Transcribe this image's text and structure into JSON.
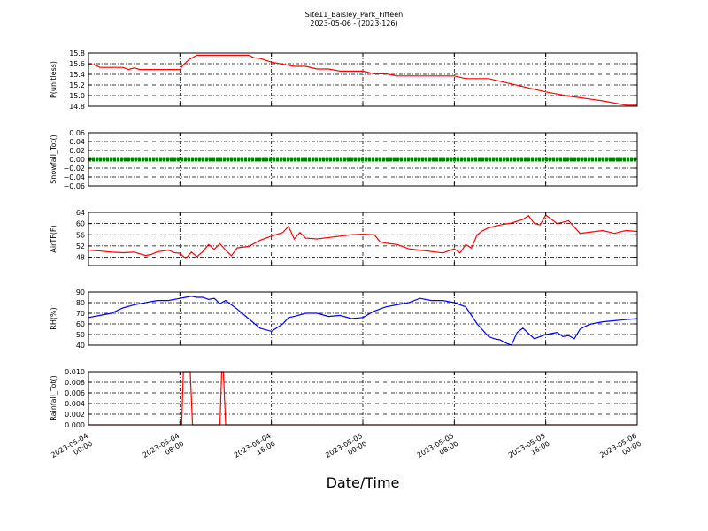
{
  "title_line1": "Site11_Baisley_Park_Fifteen",
  "title_line2": "2023-05-06 - (2023-126)",
  "xlabel": "Date/Time",
  "chart_data": {
    "type": "line",
    "x_range_hours": [
      0,
      48
    ],
    "x_ticks": [
      {
        "hours": 0,
        "line1": "2023-05-04",
        "line2": "00:00"
      },
      {
        "hours": 8,
        "line1": "2023-05-04",
        "line2": "08:00"
      },
      {
        "hours": 16,
        "line1": "2023-05-04",
        "line2": "16:00"
      },
      {
        "hours": 24,
        "line1": "2023-05-05",
        "line2": "00:00"
      },
      {
        "hours": 32,
        "line1": "2023-05-05",
        "line2": "08:00"
      },
      {
        "hours": 40,
        "line1": "2023-05-05",
        "line2": "16:00"
      },
      {
        "hours": 48,
        "line1": "2023-05-06",
        "line2": "00:00"
      }
    ],
    "panels": [
      {
        "ylabel": "P(unitless)",
        "color": "#ff0000",
        "ylim": [
          14.8,
          15.8
        ],
        "yticks": [
          "15.8",
          "15.6",
          "15.4",
          "15.2",
          "15.0",
          "14.8"
        ],
        "ytick_values": [
          15.8,
          15.6,
          15.4,
          15.2,
          15.0,
          14.8
        ],
        "x": [
          0,
          0.5,
          1,
          2,
          3,
          3.5,
          4,
          4.5,
          5,
          6,
          7,
          8,
          8.3,
          8.8,
          9.5,
          10,
          11,
          12,
          13,
          14,
          14.5,
          15,
          16,
          17,
          18,
          19,
          20,
          21,
          22,
          23,
          24,
          25,
          26,
          27,
          28,
          29,
          30,
          31,
          32,
          33,
          34,
          35,
          36,
          37,
          38,
          39,
          40,
          41,
          42,
          43,
          44,
          45,
          46,
          47,
          48
        ],
        "values": [
          15.58,
          15.58,
          15.53,
          15.53,
          15.53,
          15.49,
          15.52,
          15.49,
          15.49,
          15.49,
          15.49,
          15.49,
          15.58,
          15.68,
          15.76,
          15.76,
          15.76,
          15.76,
          15.76,
          15.76,
          15.71,
          15.7,
          15.63,
          15.59,
          15.55,
          15.55,
          15.5,
          15.5,
          15.46,
          15.46,
          15.46,
          15.41,
          15.41,
          15.37,
          15.37,
          15.37,
          15.37,
          15.37,
          15.37,
          15.32,
          15.32,
          15.32,
          15.27,
          15.22,
          15.17,
          15.12,
          15.07,
          15.03,
          14.99,
          14.96,
          14.93,
          14.9,
          14.86,
          14.82,
          14.82
        ]
      },
      {
        "ylabel": "Snowfall_Tot()",
        "color": "#008000",
        "ylim": [
          -0.06,
          0.06
        ],
        "yticks": [
          "0.06",
          "0.04",
          "0.02",
          "0.00",
          "−0.02",
          "−0.04",
          "−0.06"
        ],
        "ytick_values": [
          0.06,
          0.04,
          0.02,
          0.0,
          -0.02,
          -0.04,
          -0.06
        ],
        "x": [
          0,
          48
        ],
        "values": [
          0.0,
          0.0
        ]
      },
      {
        "ylabel": "AirTF(F)",
        "color": "#ff0000",
        "ylim": [
          45,
          64
        ],
        "yticks": [
          "64",
          "60",
          "56",
          "52",
          "48"
        ],
        "ytick_values": [
          64,
          60,
          56,
          52,
          48
        ],
        "x": [
          0,
          1,
          2,
          3,
          4,
          5,
          5.5,
          6,
          7,
          7.5,
          8,
          8.5,
          9,
          9.5,
          10,
          10.5,
          11,
          11.5,
          12,
          12.5,
          13,
          14,
          15,
          16,
          17,
          17.5,
          18,
          18.5,
          19,
          20,
          21,
          22,
          23,
          24,
          25,
          25.5,
          26,
          27,
          28,
          29,
          30,
          31,
          32,
          32.5,
          33,
          33.5,
          34,
          34.5,
          35,
          36,
          37,
          38,
          38.5,
          39,
          39.5,
          40,
          41,
          41.5,
          42,
          43,
          44,
          45,
          46,
          47,
          48
        ],
        "values": [
          50.5,
          50.2,
          49.8,
          49.6,
          49.8,
          48.6,
          49.0,
          49.9,
          50.5,
          49.6,
          49.4,
          47.5,
          49.8,
          48.2,
          50.0,
          52.5,
          50.8,
          52.8,
          50.5,
          48.5,
          51.3,
          51.8,
          54.0,
          55.5,
          56.8,
          59.0,
          54.5,
          56.8,
          54.8,
          54.5,
          55.0,
          55.5,
          56.0,
          56.2,
          56.0,
          53.5,
          53.0,
          52.5,
          51.0,
          50.5,
          50.0,
          49.5,
          51.0,
          49.5,
          52.5,
          51.2,
          56.0,
          57.5,
          58.5,
          59.5,
          60.2,
          61.5,
          62.8,
          60.0,
          59.5,
          63.0,
          60.0,
          60.5,
          61.0,
          56.5,
          57.0,
          57.5,
          56.5,
          57.5,
          57.2
        ]
      },
      {
        "ylabel": "RH(%)",
        "color": "#0000ff",
        "ylim": [
          40,
          90
        ],
        "yticks": [
          "90",
          "80",
          "70",
          "60",
          "50",
          "40"
        ],
        "ytick_values": [
          90,
          80,
          70,
          60,
          50,
          40
        ],
        "x": [
          0,
          1,
          2,
          3,
          4,
          5,
          6,
          7,
          8,
          8.5,
          9,
          9.5,
          10,
          10.5,
          11,
          11.5,
          12,
          12.5,
          13,
          14,
          15,
          16,
          17,
          17.5,
          18,
          19,
          20,
          21,
          22,
          23,
          24,
          25,
          26,
          27,
          28,
          29,
          30,
          31,
          32,
          33,
          34,
          35,
          35.5,
          36,
          36.5,
          37,
          37.5,
          38,
          38.5,
          39,
          40,
          41,
          41.5,
          42,
          42.5,
          43,
          43.5,
          44,
          45,
          46,
          47,
          48
        ],
        "values": [
          66,
          68,
          70,
          75,
          78,
          80,
          82,
          82,
          84,
          85,
          86,
          85,
          85,
          83,
          84,
          79,
          82,
          78,
          74,
          65,
          56,
          53,
          60,
          66,
          67,
          70,
          70,
          67,
          68,
          65,
          66,
          72,
          76,
          78,
          80,
          84,
          82,
          82,
          80,
          76,
          60,
          48,
          46,
          45,
          42,
          40,
          52,
          56,
          51,
          46,
          50,
          52,
          48,
          49,
          46,
          55,
          58,
          60,
          62,
          63,
          64,
          65
        ]
      },
      {
        "ylabel": "Rainfall_Tot()",
        "color": "#ff0000",
        "ylim": [
          0.0,
          0.01
        ],
        "yticks": [
          "0.010",
          "0.008",
          "0.006",
          "0.004",
          "0.002",
          "0.000"
        ],
        "ytick_values": [
          0.01,
          0.008,
          0.006,
          0.004,
          0.002,
          0.0
        ],
        "x": [
          0,
          8,
          8.15,
          8.3,
          8.6,
          8.9,
          9.1,
          9.3,
          11.5,
          11.65,
          11.8,
          12.0,
          48
        ],
        "values": [
          0,
          0,
          0,
          0.01,
          0.01,
          0.01,
          0,
          0,
          0,
          0.01,
          0.01,
          0,
          0
        ]
      }
    ]
  }
}
